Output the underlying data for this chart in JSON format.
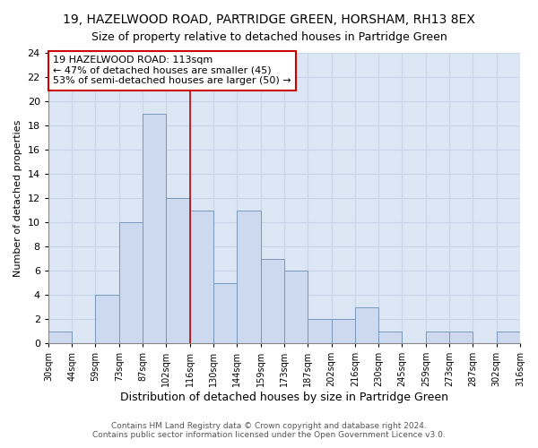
{
  "title": "19, HAZELWOOD ROAD, PARTRIDGE GREEN, HORSHAM, RH13 8EX",
  "subtitle": "Size of property relative to detached houses in Partridge Green",
  "xlabel": "Distribution of detached houses by size in Partridge Green",
  "ylabel": "Number of detached properties",
  "bar_values": [
    1,
    0,
    4,
    10,
    19,
    12,
    11,
    5,
    11,
    7,
    6,
    2,
    2,
    3,
    1,
    0,
    1,
    1,
    0,
    1
  ],
  "bin_labels": [
    "30sqm",
    "44sqm",
    "59sqm",
    "73sqm",
    "87sqm",
    "102sqm",
    "116sqm",
    "130sqm",
    "144sqm",
    "159sqm",
    "173sqm",
    "187sqm",
    "202sqm",
    "216sqm",
    "230sqm",
    "245sqm",
    "259sqm",
    "273sqm",
    "287sqm",
    "302sqm",
    "316sqm"
  ],
  "bar_color": "#ccd9ee",
  "bar_edge_color": "#7799bb",
  "bg_color": "#dce6f5",
  "grid_color": "#c8d4e8",
  "vline_x_index": 6,
  "vline_color": "#cc0000",
  "annotation_text": "19 HAZELWOOD ROAD: 113sqm\n← 47% of detached houses are smaller (45)\n53% of semi-detached houses are larger (50) →",
  "annotation_box_color": "#ffffff",
  "annotation_box_edge": "#cc0000",
  "ylim": [
    0,
    24
  ],
  "yticks": [
    0,
    2,
    4,
    6,
    8,
    10,
    12,
    14,
    16,
    18,
    20,
    22,
    24
  ],
  "footer": "Contains HM Land Registry data © Crown copyright and database right 2024.\nContains public sector information licensed under the Open Government Licence v3.0.",
  "title_fontsize": 10,
  "subtitle_fontsize": 9
}
